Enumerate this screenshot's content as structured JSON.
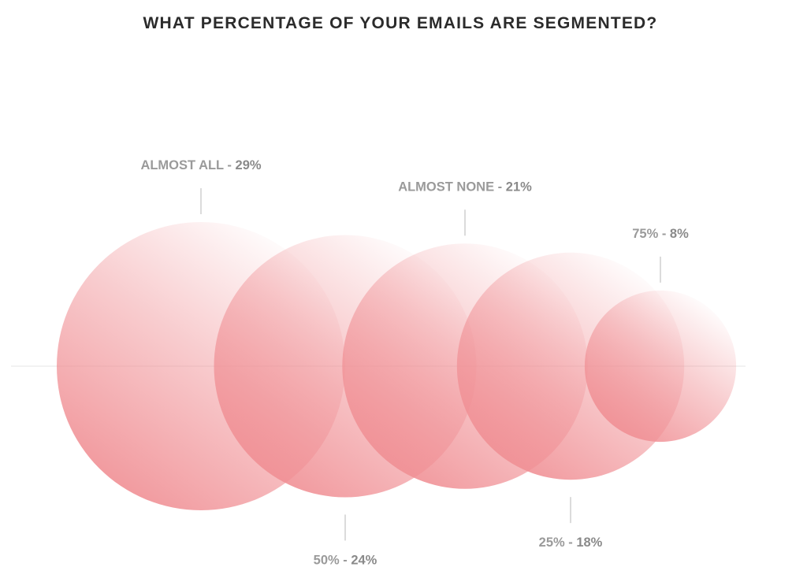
{
  "chart_data": {
    "type": "bubble",
    "title": "WHAT PERCENTAGE OF YOUR EMAILS ARE SEGMENTED?",
    "unit": "%",
    "series": [
      {
        "category": "ALMOST ALL",
        "value": 29,
        "label_position": "above"
      },
      {
        "category": "50%",
        "value": 24,
        "label_position": "below"
      },
      {
        "category": "ALMOST NONE",
        "value": 21,
        "label_position": "above"
      },
      {
        "category": "25%",
        "value": 18,
        "label_position": "below"
      },
      {
        "category": "75%",
        "value": 8,
        "label_position": "above"
      }
    ],
    "colors": {
      "bubble": "#f08f94",
      "baseline": "#e5e5e5",
      "leader": "#cfcfcf",
      "label": "#9a9a9a",
      "title": "#2b2b2b"
    }
  }
}
